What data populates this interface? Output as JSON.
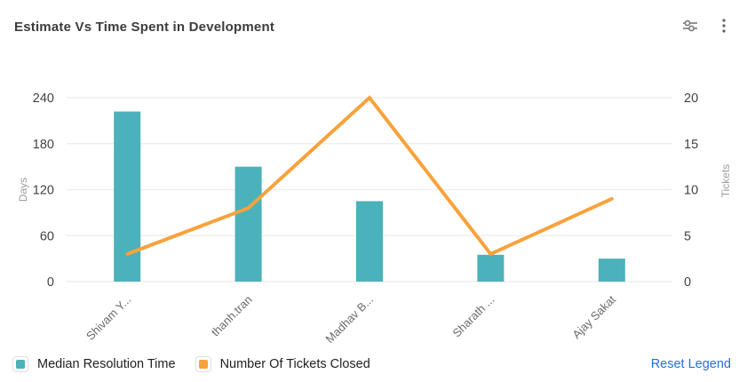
{
  "header": {
    "title": "Estimate Vs Time Spent in Development",
    "actions": [
      {
        "name": "chart-settings",
        "icon": "sliders-icon"
      },
      {
        "name": "more-options",
        "icon": "kebab-menu-icon"
      }
    ]
  },
  "chart_data": {
    "type": "combo",
    "categories": [
      "Shivam Y...",
      "thanh.tran",
      "Madhav B...",
      "Sharath ...",
      "Ajay Sakat"
    ],
    "series": [
      {
        "name": "Median Resolution Time",
        "type": "bar",
        "axis": "left",
        "color": "#4BB1BA",
        "values": [
          222,
          150,
          105,
          35,
          30
        ]
      },
      {
        "name": "Number Of Tickets Closed",
        "type": "line",
        "axis": "right",
        "color": "#F8A23B",
        "values": [
          3,
          8,
          20,
          3,
          9
        ]
      }
    ],
    "left_axis": {
      "label": "Days",
      "ticks": [
        0,
        60,
        120,
        180,
        240
      ],
      "max": 240
    },
    "right_axis": {
      "label": "Tickets",
      "ticks": [
        0,
        5,
        10,
        15,
        20
      ],
      "max": 20
    },
    "grid": true,
    "legend_position": "bottom",
    "colors": {
      "grid_line": "#ececec",
      "tick_label": "#434343",
      "axis_name": "#9e9e9e",
      "category_label": "#6b6b6b"
    }
  },
  "legend": {
    "items": [
      {
        "label": "Median Resolution Time",
        "color": "#4BB1BA"
      },
      {
        "label": "Number Of Tickets Closed",
        "color": "#F8A23B"
      }
    ],
    "reset_label": "Reset Legend"
  }
}
